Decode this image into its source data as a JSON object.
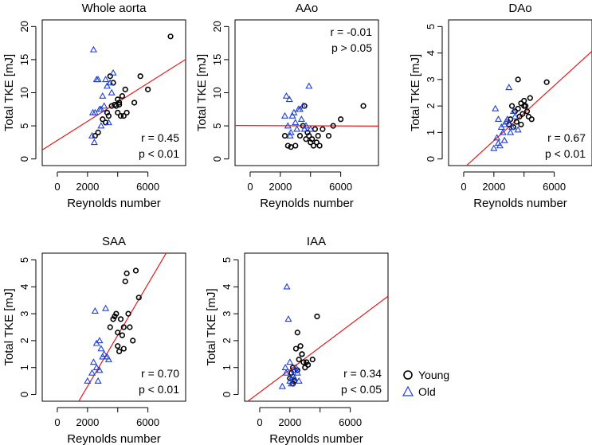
{
  "chart_data": [
    {
      "type": "scatter",
      "title": "Whole aorta",
      "xlabel": "Reynolds number",
      "ylabel": "Total TKE [mJ]",
      "xlim": [
        -1000,
        8500
      ],
      "ylim": [
        -1,
        21
      ],
      "xticks": [
        0,
        2000,
        4000,
        6000
      ],
      "xtick_labels": [
        "0",
        "2000",
        "",
        "6000"
      ],
      "yticks": [
        0,
        5,
        10,
        15,
        20
      ],
      "ytick_labels": [
        "0",
        "5",
        "10",
        "15",
        "20"
      ],
      "fit": {
        "intercept": 2.8,
        "slope": 0.00144
      },
      "stat_r": "r = 0.45",
      "stat_p": "p < 0.01",
      "stat_pos": "bottom-right",
      "series": [
        {
          "name": "Young",
          "marker": "circle",
          "color": "#000000",
          "x": [
            2500,
            2700,
            3000,
            3200,
            3300,
            3500,
            3600,
            3700,
            3800,
            3900,
            4000,
            4000,
            4100,
            4200,
            4300,
            4400,
            4500,
            4600,
            5100,
            5500,
            6000,
            7500,
            3400,
            4100
          ],
          "y": [
            3.5,
            4.0,
            6.0,
            5.5,
            7.0,
            12.5,
            8.0,
            11.5,
            8.2,
            8.0,
            7.0,
            9.0,
            8.5,
            6.5,
            9.5,
            6.5,
            10.5,
            7.0,
            8.5,
            12.5,
            10.5,
            18.5,
            6.5,
            8.2
          ]
        },
        {
          "name": "Old",
          "marker": "triangle",
          "color": "#1f3fd6",
          "x": [
            2300,
            2400,
            2500,
            2600,
            2700,
            2800,
            2900,
            3000,
            3100,
            3200,
            3300,
            3400,
            3500,
            3600,
            3700,
            2450,
            2350,
            2900
          ],
          "y": [
            3.5,
            16.5,
            7.0,
            12.0,
            12.0,
            7.5,
            5.0,
            9.5,
            8.0,
            12.0,
            11.0,
            5.5,
            11.5,
            10.0,
            13.0,
            2.5,
            7.0,
            7.5
          ]
        }
      ]
    },
    {
      "type": "scatter",
      "title": "AAo",
      "xlabel": "Reynolds number",
      "ylabel": "Total TKE [mJ]",
      "xlim": [
        -1000,
        8500
      ],
      "ylim": [
        -1,
        21
      ],
      "xticks": [
        0,
        2000,
        4000,
        6000
      ],
      "xtick_labels": [
        "0",
        "2000",
        "",
        "6000"
      ],
      "yticks": [
        0,
        5,
        10,
        15,
        20
      ],
      "ytick_labels": [
        "0",
        "5",
        "10",
        "15",
        "20"
      ],
      "fit": {
        "intercept": 5.05,
        "slope": -1e-05
      },
      "stat_r": "r = -0.01",
      "stat_p": "p > 0.05",
      "stat_pos": "top-right",
      "series": [
        {
          "name": "Young",
          "marker": "circle",
          "color": "#000000",
          "x": [
            2300,
            2500,
            2700,
            3000,
            3300,
            3500,
            3600,
            3800,
            3900,
            4000,
            4100,
            4200,
            4300,
            4400,
            4500,
            4600,
            4800,
            5200,
            5500,
            6000,
            7500,
            3700
          ],
          "y": [
            3.5,
            2.0,
            1.8,
            2.0,
            3.5,
            5.0,
            8.0,
            4.0,
            3.5,
            2.5,
            3.0,
            2.0,
            4.5,
            2.5,
            3.5,
            2.0,
            4.5,
            3.5,
            5.0,
            6.0,
            8.0,
            3.0
          ]
        },
        {
          "name": "Old",
          "marker": "triangle",
          "color": "#1f3fd6",
          "x": [
            2300,
            2400,
            2500,
            2600,
            2700,
            2800,
            2900,
            3000,
            3100,
            3200,
            3300,
            3400,
            3500,
            3600,
            3700,
            3900,
            2650,
            4000
          ],
          "y": [
            6.5,
            9.5,
            5.0,
            9.0,
            4.0,
            6.5,
            7.0,
            5.5,
            4.5,
            7.5,
            7.5,
            6.0,
            8.0,
            4.5,
            5.0,
            11.0,
            3.5,
            4.5
          ]
        }
      ]
    },
    {
      "type": "scatter",
      "title": "DAo",
      "xlabel": "Reynolds number",
      "ylabel": "Total TKE [mJ]",
      "xlim": [
        -1000,
        8500
      ],
      "ylim": [
        -0.25,
        5.25
      ],
      "xticks": [
        0,
        2000,
        4000,
        6000
      ],
      "xtick_labels": [
        "0",
        "2000",
        "",
        "6000"
      ],
      "yticks": [
        0,
        1,
        2,
        3,
        4,
        5
      ],
      "ytick_labels": [
        "0",
        "1",
        "2",
        "3",
        "4",
        "5"
      ],
      "fit": {
        "intercept": -0.35,
        "slope": 0.00052
      },
      "stat_r": "r = 0.67",
      "stat_p": "p < 0.01",
      "stat_pos": "bottom-right",
      "series": [
        {
          "name": "Young",
          "marker": "circle",
          "color": "#000000",
          "x": [
            3000,
            3100,
            3200,
            3300,
            3400,
            3500,
            3600,
            3700,
            3800,
            3900,
            4000,
            4100,
            4200,
            4300,
            4400,
            4500,
            5500,
            3600,
            3800,
            4000
          ],
          "y": [
            1.3,
            1.5,
            2.0,
            1.2,
            1.8,
            1.4,
            3.0,
            1.6,
            2.1,
            1.7,
            2.0,
            2.0,
            1.8,
            1.6,
            2.3,
            1.5,
            2.9,
            1.9,
            1.3,
            2.2
          ]
        },
        {
          "name": "Old",
          "marker": "triangle",
          "color": "#1f3fd6",
          "x": [
            2000,
            2100,
            2200,
            2300,
            2400,
            2500,
            2600,
            2700,
            2800,
            2900,
            3000,
            3100,
            3200,
            3300,
            3400,
            2300,
            2700,
            3600
          ],
          "y": [
            0.4,
            1.9,
            0.8,
            0.6,
            0.5,
            1.2,
            1.0,
            0.7,
            1.4,
            1.5,
            2.7,
            1.0,
            1.2,
            1.8,
            1.6,
            1.5,
            1.3,
            1.1
          ]
        }
      ]
    },
    {
      "type": "scatter",
      "title": "SAA",
      "xlabel": "Reynolds number",
      "ylabel": "Total TKE [mJ]",
      "xlim": [
        -1000,
        8500
      ],
      "ylim": [
        -0.25,
        5.25
      ],
      "xticks": [
        0,
        2000,
        4000,
        6000
      ],
      "xtick_labels": [
        "0",
        "2000",
        "",
        "6000"
      ],
      "yticks": [
        0,
        1,
        2,
        3,
        4,
        5
      ],
      "ytick_labels": [
        "0",
        "1",
        "2",
        "3",
        "4",
        "5"
      ],
      "fit": {
        "intercept": -1.6,
        "slope": 0.00095
      },
      "stat_r": "r = 0.70",
      "stat_p": "p < 0.01",
      "stat_pos": "bottom-right",
      "series": [
        {
          "name": "Young",
          "marker": "circle",
          "color": "#000000",
          "x": [
            3500,
            3700,
            3800,
            3900,
            4000,
            4100,
            4200,
            4300,
            4400,
            4500,
            4600,
            4700,
            4800,
            5000,
            5200,
            5400,
            4000,
            4400
          ],
          "y": [
            2.5,
            2.8,
            2.9,
            3.0,
            1.8,
            1.6,
            2.8,
            2.2,
            2.5,
            4.2,
            4.5,
            3.0,
            2.5,
            2.0,
            4.6,
            3.6,
            2.3,
            1.7
          ]
        },
        {
          "name": "Old",
          "marker": "triangle",
          "color": "#1f3fd6",
          "x": [
            2000,
            2300,
            2400,
            2500,
            2600,
            2700,
            2800,
            2900,
            3000,
            3100,
            3200,
            3300,
            3400,
            2600,
            2800
          ],
          "y": [
            0.5,
            0.8,
            1.2,
            3.1,
            1.0,
            0.5,
            2.0,
            1.7,
            1.4,
            1.5,
            3.2,
            1.4,
            1.3,
            1.9,
            0.9
          ]
        }
      ]
    },
    {
      "type": "scatter",
      "title": "IAA",
      "xlabel": "Reynolds number",
      "ylabel": "Total TKE [mJ]",
      "xlim": [
        -1000,
        8500
      ],
      "ylim": [
        -0.25,
        5.25
      ],
      "xticks": [
        0,
        2000,
        4000,
        6000
      ],
      "xtick_labels": [
        "0",
        "2000",
        "",
        "6000"
      ],
      "yticks": [
        0,
        1,
        2,
        3,
        4,
        5
      ],
      "ytick_labels": [
        "0",
        "1",
        "2",
        "3",
        "4",
        "5"
      ],
      "fit": {
        "intercept": 0.08,
        "slope": 0.00042
      },
      "stat_r": "r = 0.34",
      "stat_p": "p < 0.05",
      "stat_pos": "bottom-right",
      "series": [
        {
          "name": "Young",
          "marker": "circle",
          "color": "#000000",
          "x": [
            2000,
            2100,
            2200,
            2300,
            2400,
            2500,
            2600,
            2700,
            2800,
            2900,
            3000,
            3100,
            3200,
            3500,
            3800,
            2500,
            2800,
            2200
          ],
          "y": [
            0.6,
            0.8,
            1.0,
            0.5,
            1.7,
            2.3,
            1.3,
            1.8,
            1.5,
            1.2,
            1.0,
            1.2,
            1.1,
            1.3,
            2.9,
            0.9,
            1.5,
            0.4
          ]
        },
        {
          "name": "Old",
          "marker": "triangle",
          "color": "#1f3fd6",
          "x": [
            1500,
            1700,
            1800,
            1900,
            2000,
            2100,
            2200,
            2300,
            2400,
            2500,
            2600,
            1750,
            2000,
            2300
          ],
          "y": [
            0.3,
            1.0,
            4.0,
            2.8,
            0.5,
            0.4,
            0.7,
            0.6,
            1.0,
            0.8,
            0.5,
            0.8,
            1.2,
            0.9
          ]
        }
      ]
    }
  ],
  "legend": {
    "position": "bottom-right",
    "items": [
      {
        "label": "Young",
        "marker": "circle",
        "color": "#000000"
      },
      {
        "label": "Old",
        "marker": "triangle",
        "color": "#1f3fd6"
      }
    ]
  },
  "fit_color": "#e31a1c"
}
